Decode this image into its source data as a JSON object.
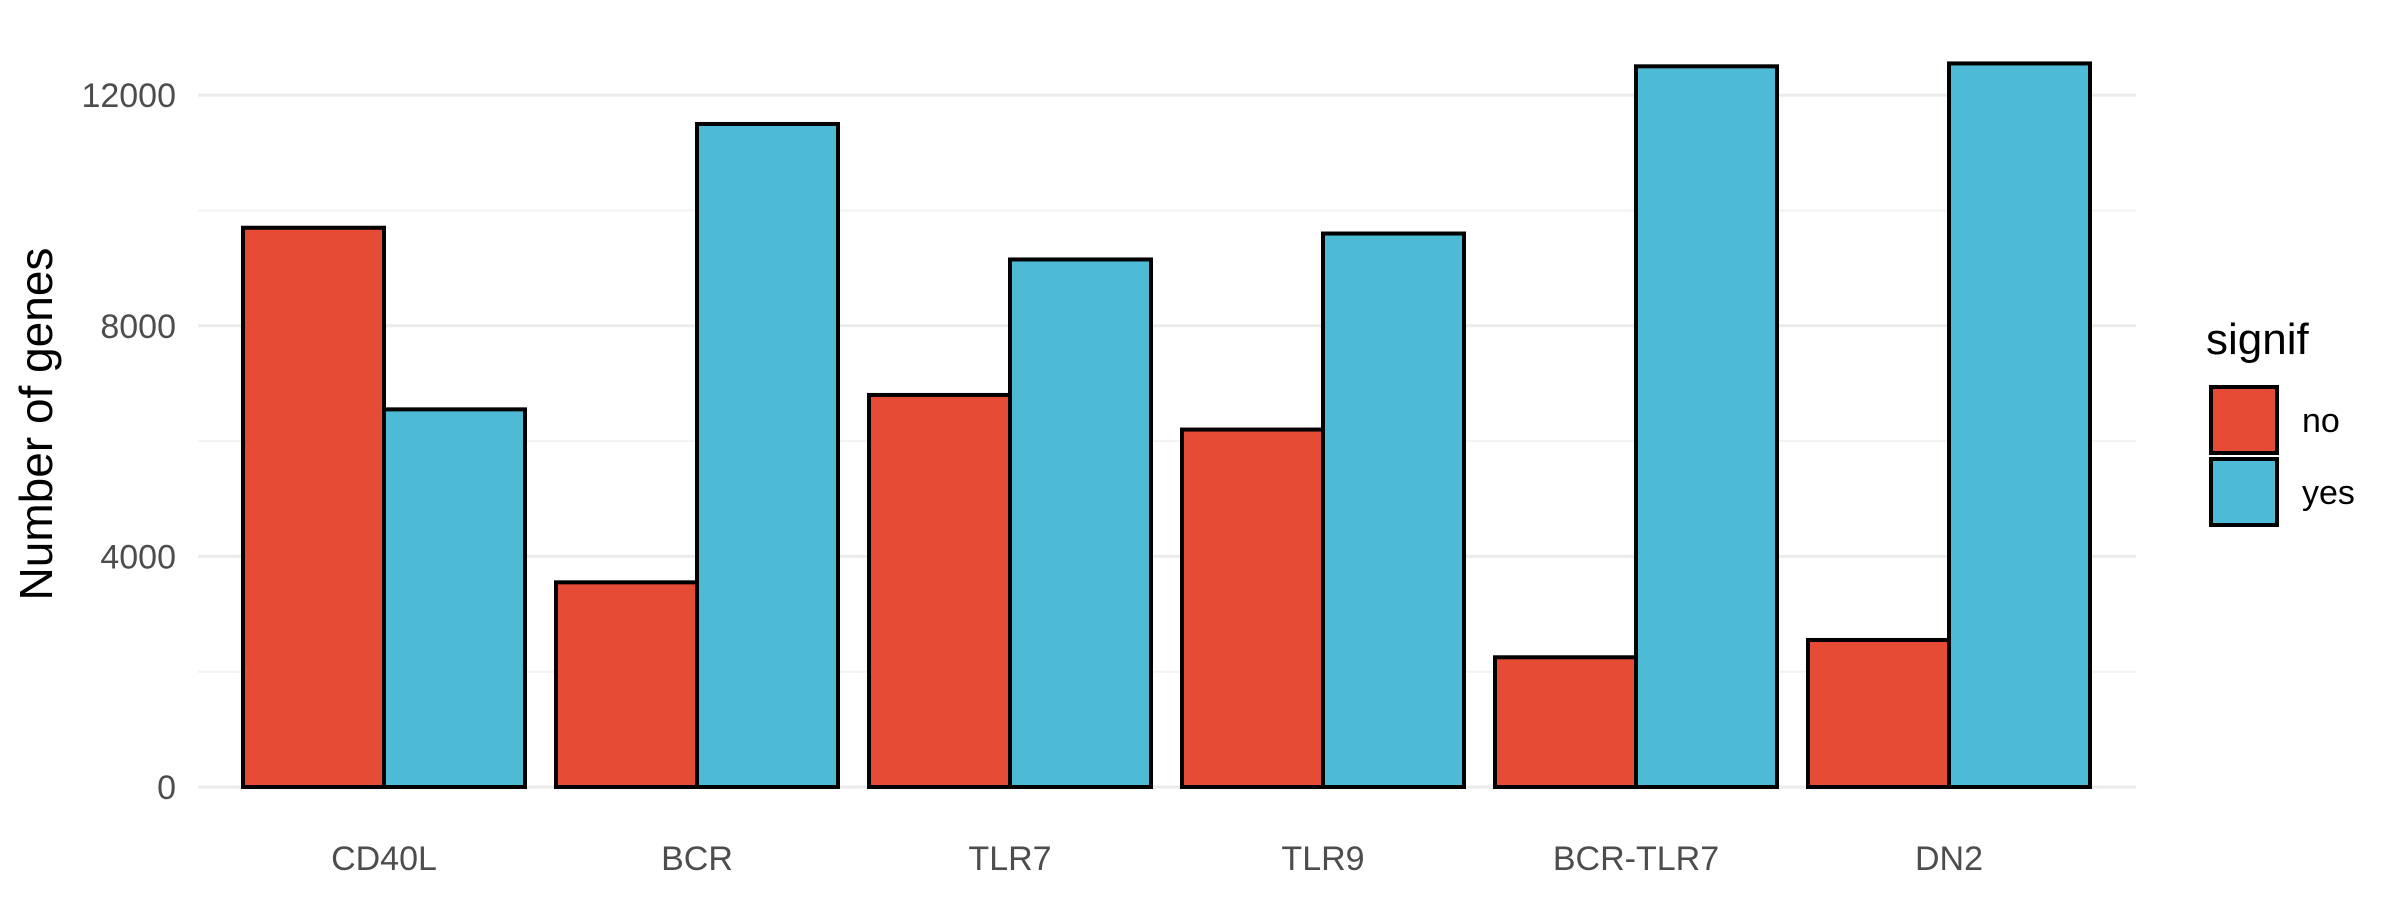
{
  "chart_data": {
    "type": "bar",
    "categories": [
      "CD40L",
      "BCR",
      "TLR7",
      "TLR9",
      "BCR-TLR7",
      "DN2"
    ],
    "series": [
      {
        "name": "no",
        "color": "#E64B35",
        "values": [
          9700,
          3550,
          6800,
          6200,
          2250,
          2550
        ]
      },
      {
        "name": "yes",
        "color": "#4DBBD5",
        "values": [
          6550,
          11500,
          9150,
          9600,
          12500,
          12550
        ]
      }
    ],
    "title": "",
    "xlabel": "",
    "ylabel": "Number of genes",
    "ylim": [
      0,
      13130
    ],
    "yticks": [
      0,
      4000,
      8000,
      12000
    ],
    "ytick_labels": [
      "0",
      "4000",
      "8000",
      "12000"
    ],
    "grid": true,
    "legend": {
      "title": "signif",
      "position": "right"
    }
  }
}
